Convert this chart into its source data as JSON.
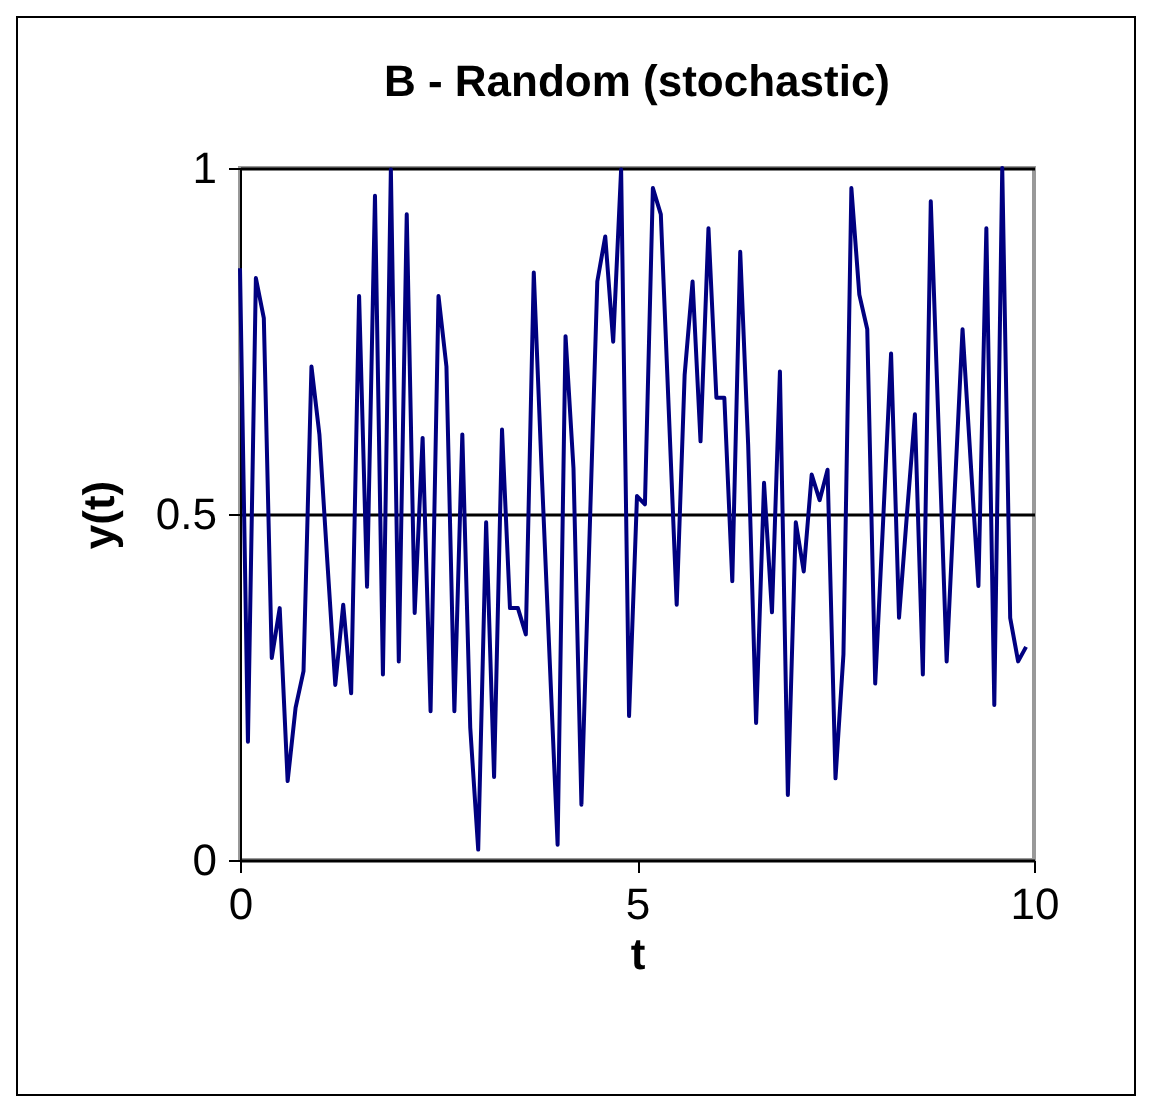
{
  "chart_data": {
    "type": "line",
    "title": "B - Random (stochastic)",
    "xlabel": "t",
    "ylabel": "y(t)",
    "x": [
      0,
      0.1,
      0.2,
      0.3,
      0.4,
      0.5,
      0.6,
      0.7,
      0.8,
      0.9,
      1,
      1.1,
      1.2,
      1.3,
      1.4,
      1.5,
      1.6,
      1.7,
      1.8,
      1.9,
      2,
      2.1,
      2.2,
      2.3,
      2.4,
      2.5,
      2.6,
      2.7,
      2.8,
      2.9,
      3,
      3.1,
      3.2,
      3.3,
      3.4,
      3.5,
      3.6,
      3.7,
      3.8,
      3.9,
      4,
      4.1,
      4.2,
      4.3,
      4.4,
      4.5,
      4.6,
      4.7,
      4.8,
      4.9,
      5,
      5.1,
      5.2,
      5.3,
      5.4,
      5.5,
      5.6,
      5.7,
      5.8,
      5.9,
      6,
      6.1,
      6.2,
      6.3,
      6.4,
      6.5,
      6.6,
      6.7,
      6.8,
      6.9,
      7,
      7.1,
      7.2,
      7.3,
      7.4,
      7.5,
      7.6,
      7.7,
      7.8,
      7.9,
      8,
      8.1,
      8.2,
      8.3,
      8.4,
      8.5,
      8.6,
      8.7,
      8.8,
      8.9,
      9,
      9.1,
      9.2,
      9.3,
      9.4,
      9.5,
      9.6,
      9.7,
      9.8,
      9.9
    ],
    "series": [
      {
        "color": "#000080",
        "values": [
          0.855,
          0.171,
          0.841,
          0.783,
          0.292,
          0.364,
          0.114,
          0.22,
          0.273,
          0.713,
          0.615,
          0.431,
          0.253,
          0.369,
          0.241,
          0.815,
          0.395,
          0.96,
          0.268,
          0.998,
          0.287,
          0.933,
          0.357,
          0.61,
          0.215,
          0.815,
          0.713,
          0.215,
          0.615,
          0.191,
          0.015,
          0.488,
          0.12,
          0.622,
          0.364,
          0.364,
          0.326,
          0.849,
          0.56,
          0.29,
          0.022,
          0.757,
          0.566,
          0.08,
          0.46,
          0.836,
          0.901,
          0.749,
          0.998,
          0.208,
          0.526,
          0.514,
          0.971,
          0.933,
          0.65,
          0.369,
          0.701,
          0.836,
          0.605,
          0.913,
          0.668,
          0.668,
          0.403,
          0.879,
          0.6,
          0.198,
          0.545,
          0.358,
          0.706,
          0.094,
          0.488,
          0.417,
          0.557,
          0.52,
          0.564,
          0.118,
          0.297,
          0.971,
          0.817,
          0.767,
          0.255,
          0.49,
          0.732,
          0.35,
          0.5,
          0.644,
          0.268,
          0.952,
          0.62,
          0.287,
          0.53,
          0.767,
          0.58,
          0.396,
          0.913,
          0.224,
          1.0,
          0.35,
          0.287,
          0.308
        ]
      }
    ],
    "xlim": [
      0,
      10
    ],
    "xticks": [
      0,
      5,
      10
    ],
    "ylim": [
      0,
      1
    ],
    "yticks": [
      0,
      0.5,
      1
    ],
    "grid": "y",
    "marker": "none",
    "line_style": "solid"
  }
}
